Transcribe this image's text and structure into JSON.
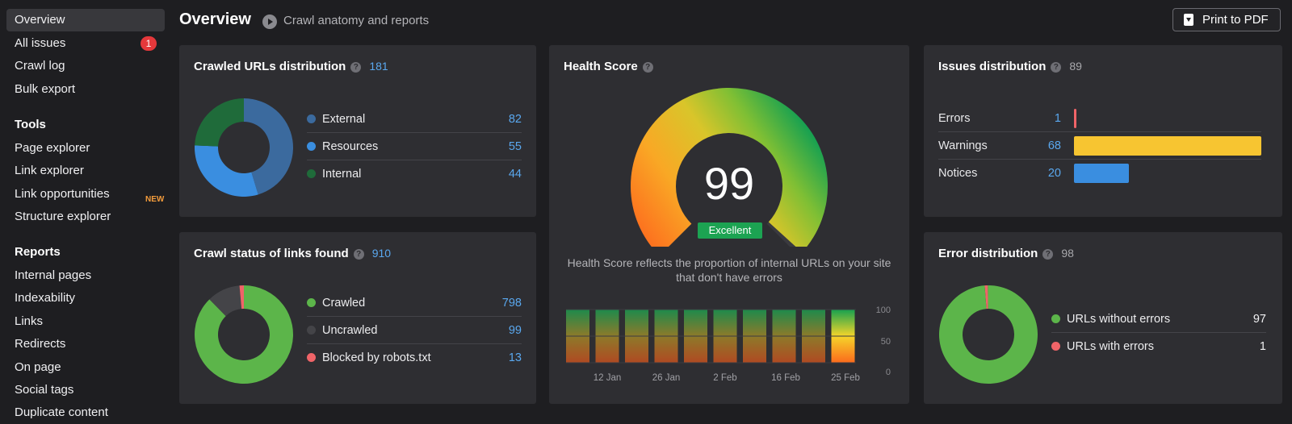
{
  "sidebar": {
    "items": [
      {
        "label": "Overview",
        "active": true
      },
      {
        "label": "All issues",
        "badge": "1"
      },
      {
        "label": "Crawl log"
      },
      {
        "label": "Bulk export"
      }
    ],
    "tools_heading": "Tools",
    "tools": [
      {
        "label": "Page explorer"
      },
      {
        "label": "Link explorer"
      },
      {
        "label": "Link opportunities",
        "tag": "NEW"
      },
      {
        "label": "Structure explorer"
      }
    ],
    "reports_heading": "Reports",
    "reports": [
      {
        "label": "Internal pages"
      },
      {
        "label": "Indexability"
      },
      {
        "label": "Links"
      },
      {
        "label": "Redirects"
      },
      {
        "label": "On page"
      },
      {
        "label": "Social tags"
      },
      {
        "label": "Duplicate content"
      }
    ]
  },
  "header": {
    "title": "Overview",
    "subtitle": "Crawl anatomy and reports",
    "print_label": "Print to PDF"
  },
  "crawled_urls": {
    "title": "Crawled URLs distribution",
    "total": "181",
    "rows": [
      {
        "label": "External",
        "value": "82",
        "color": "#3b6a9e"
      },
      {
        "label": "Resources",
        "value": "55",
        "color": "#3a8ee0"
      },
      {
        "label": "Internal",
        "value": "44",
        "color": "#1f6b3a"
      }
    ]
  },
  "crawl_status": {
    "title": "Crawl status of links found",
    "total": "910",
    "rows": [
      {
        "label": "Crawled",
        "value": "798",
        "color": "#5cb54a"
      },
      {
        "label": "Uncrawled",
        "value": "99",
        "color": "#444448"
      },
      {
        "label": "Blocked by robots.txt",
        "value": "13",
        "color": "#f06468"
      }
    ]
  },
  "health": {
    "title": "Health Score",
    "score": "99",
    "score_value": 99,
    "rating": "Excellent",
    "description": "Health Score reflects the proportion of internal URLs on your site that don't have errors",
    "history": {
      "bar_count": 10,
      "x_labels": [
        "12 Jan",
        "26 Jan",
        "2 Feb",
        "16 Feb",
        "25 Feb"
      ],
      "y_ticks": [
        "100",
        "50",
        "0"
      ]
    }
  },
  "issues": {
    "title": "Issues distribution",
    "total": "89",
    "rows": [
      {
        "label": "Errors",
        "value": "1",
        "count": 1,
        "color": "#f06468"
      },
      {
        "label": "Warnings",
        "value": "68",
        "count": 68,
        "color": "#f7c531"
      },
      {
        "label": "Notices",
        "value": "20",
        "count": 20,
        "color": "#3a8ee0"
      }
    ]
  },
  "errors": {
    "title": "Error distribution",
    "total": "98",
    "rows": [
      {
        "label": "URLs without errors",
        "value": "97",
        "color": "#5cb54a"
      },
      {
        "label": "URLs with errors",
        "value": "1",
        "color": "#f06468"
      }
    ]
  }
}
